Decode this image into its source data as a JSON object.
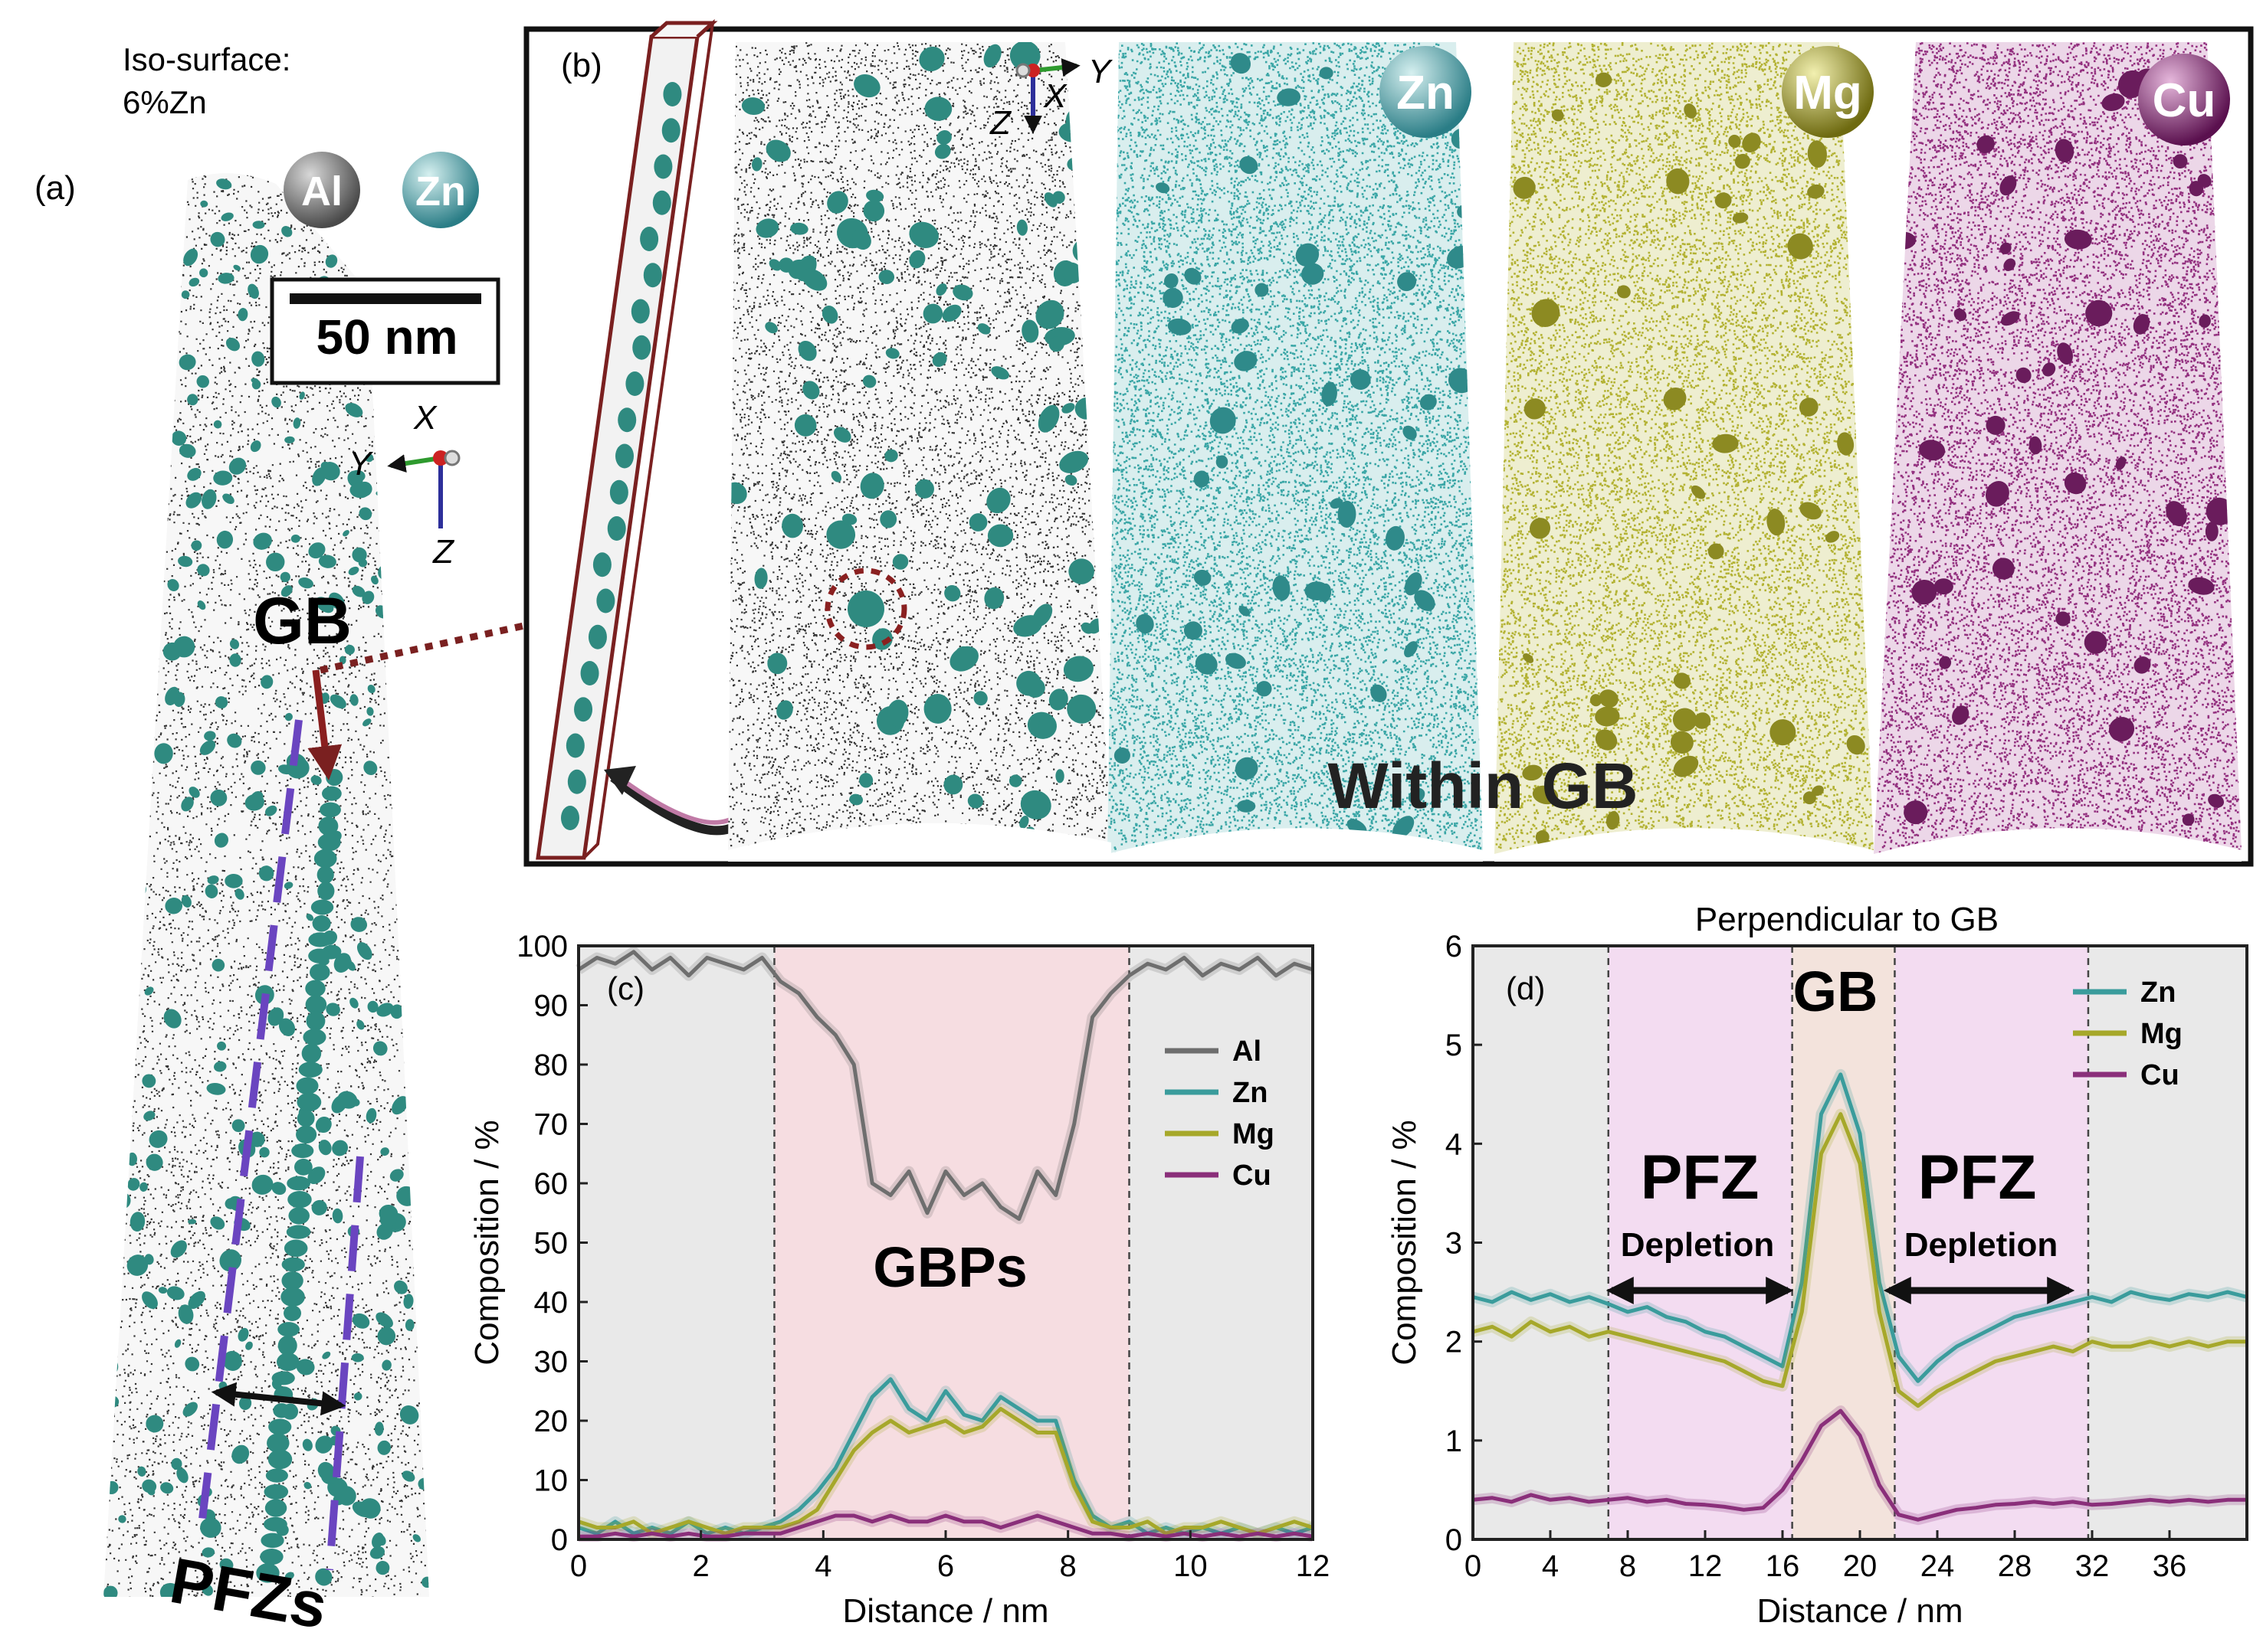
{
  "panel_a": {
    "label": "(a)",
    "iso_line1": "Iso-surface:",
    "iso_line2": "6%Zn",
    "atom_al": "Al",
    "atom_zn": "Zn",
    "scale": "50 nm",
    "axis_x": "X",
    "axis_y": "Y",
    "axis_z": "Z",
    "gb_label": "GB",
    "pfz_label": "PFZs"
  },
  "panel_b": {
    "label": "(b)",
    "axis_x": "X",
    "axis_y": "Y",
    "axis_z": "Z",
    "atom_zn": "Zn",
    "atom_mg": "Mg",
    "atom_cu": "Cu",
    "caption": "Within GB",
    "colors": {
      "zn": "#3aa6a6",
      "mg": "#b3b233",
      "cu": "#93307f",
      "precipitate": "#2f8a80"
    }
  },
  "panel_c": {
    "label": "(c)",
    "band_label": "GBPs"
  },
  "panel_d": {
    "label": "(d)",
    "title": "Perpendicular to GB",
    "gb_label": "GB",
    "pfz_left": "PFZ",
    "pfz_right": "PFZ",
    "depletion_left": "Depletion",
    "depletion_right": "Depletion"
  },
  "chart_data": [
    {
      "type": "line",
      "panel": "c",
      "xlabel": "Distance / nm",
      "ylabel": "Composition / %",
      "xlim": [
        0,
        12
      ],
      "ylim": [
        0,
        100
      ],
      "xticks": [
        0,
        2,
        4,
        6,
        8,
        10,
        12
      ],
      "yticks": [
        0,
        10,
        20,
        30,
        40,
        50,
        60,
        70,
        80,
        90,
        100
      ],
      "legend_position": "right",
      "regions": [
        {
          "x0": 0,
          "x1": 3.2,
          "color": "#e9e9e9"
        },
        {
          "x0": 3.2,
          "x1": 9.0,
          "color": "#f6dde1"
        },
        {
          "x0": 9.0,
          "x1": 12,
          "color": "#e9e9e9"
        }
      ],
      "x": [
        0,
        0.3,
        0.6,
        0.9,
        1.2,
        1.5,
        1.8,
        2.1,
        2.4,
        2.7,
        3.0,
        3.3,
        3.6,
        3.9,
        4.2,
        4.5,
        4.8,
        5.1,
        5.4,
        5.7,
        6.0,
        6.3,
        6.6,
        6.9,
        7.2,
        7.5,
        7.8,
        8.1,
        8.4,
        8.7,
        9.0,
        9.3,
        9.6,
        9.9,
        10.2,
        10.5,
        10.8,
        11.1,
        11.4,
        11.7,
        12.0
      ],
      "series": [
        {
          "name": "Al",
          "color": "#6e6e6e",
          "values": [
            96,
            98,
            97,
            99,
            96,
            98,
            95,
            98,
            97,
            96,
            98,
            94,
            92,
            88,
            85,
            80,
            60,
            58,
            62,
            55,
            62,
            58,
            60,
            56,
            54,
            62,
            58,
            70,
            88,
            92,
            95,
            97,
            96,
            98,
            95,
            97,
            96,
            98,
            95,
            97,
            96
          ]
        },
        {
          "name": "Zn",
          "color": "#3a9c9c",
          "values": [
            2,
            1,
            3,
            1,
            2,
            1,
            3,
            1,
            2,
            1,
            2,
            3,
            5,
            8,
            12,
            18,
            24,
            27,
            22,
            20,
            25,
            21,
            20,
            24,
            22,
            20,
            20,
            10,
            4,
            2,
            3,
            1,
            2,
            1,
            2,
            1,
            2,
            1,
            2,
            1,
            2
          ]
        },
        {
          "name": "Mg",
          "color": "#a6a82a",
          "values": [
            3,
            2,
            2,
            3,
            1,
            2,
            3,
            2,
            1,
            2,
            2,
            2,
            3,
            5,
            10,
            15,
            18,
            20,
            18,
            19,
            20,
            18,
            19,
            22,
            20,
            18,
            18,
            9,
            3,
            2,
            2,
            3,
            1,
            2,
            2,
            3,
            2,
            1,
            2,
            3,
            2
          ]
        },
        {
          "name": "Cu",
          "color": "#8a2f7a",
          "values": [
            0.5,
            0.5,
            1,
            0.5,
            1,
            0.5,
            1,
            0.5,
            0.5,
            1,
            1,
            1,
            2,
            3,
            4,
            4,
            3,
            4,
            3,
            3,
            4,
            3,
            3,
            2,
            3,
            4,
            3,
            2,
            1,
            1,
            0.5,
            1,
            0.5,
            1,
            0.5,
            1,
            0.5,
            1,
            0.5,
            1,
            0.5
          ]
        }
      ]
    },
    {
      "type": "line",
      "panel": "d",
      "title": "Perpendicular to GB",
      "xlabel": "Distance / nm",
      "ylabel": "Composition / %",
      "xlim": [
        0,
        40
      ],
      "ylim": [
        0,
        6
      ],
      "xticks": [
        0,
        4,
        8,
        12,
        16,
        20,
        24,
        28,
        32,
        36
      ],
      "yticks": [
        0,
        1,
        2,
        3,
        4,
        5,
        6
      ],
      "legend_position": "top-right",
      "regions": [
        {
          "x0": 0,
          "x1": 7,
          "color": "#e9e9e9"
        },
        {
          "x0": 7,
          "x1": 16.5,
          "color": "#f3dcf1"
        },
        {
          "x0": 16.5,
          "x1": 21.8,
          "color": "#f3e3dc"
        },
        {
          "x0": 21.8,
          "x1": 31.8,
          "color": "#f3dcf1"
        },
        {
          "x0": 31.8,
          "x1": 40,
          "color": "#e9e9e9"
        }
      ],
      "x": [
        0,
        1,
        2,
        3,
        4,
        5,
        6,
        7,
        8,
        9,
        10,
        11,
        12,
        13,
        14,
        15,
        16,
        17,
        18,
        19,
        20,
        21,
        22,
        23,
        24,
        25,
        26,
        27,
        28,
        29,
        30,
        31,
        32,
        33,
        34,
        35,
        36,
        37,
        38,
        39,
        40
      ],
      "series": [
        {
          "name": "Zn",
          "color": "#3a9c9c",
          "values": [
            2.45,
            2.4,
            2.5,
            2.42,
            2.48,
            2.4,
            2.45,
            2.38,
            2.3,
            2.35,
            2.25,
            2.2,
            2.1,
            2.05,
            1.95,
            1.85,
            1.75,
            2.6,
            4.3,
            4.7,
            4.1,
            2.6,
            1.85,
            1.6,
            1.8,
            1.95,
            2.05,
            2.15,
            2.25,
            2.3,
            2.35,
            2.4,
            2.45,
            2.4,
            2.5,
            2.45,
            2.42,
            2.48,
            2.45,
            2.5,
            2.45
          ]
        },
        {
          "name": "Mg",
          "color": "#a6a82a",
          "values": [
            2.1,
            2.15,
            2.05,
            2.2,
            2.1,
            2.15,
            2.05,
            2.1,
            2.05,
            2.0,
            1.95,
            1.9,
            1.85,
            1.8,
            1.7,
            1.6,
            1.55,
            2.3,
            3.9,
            4.3,
            3.8,
            2.3,
            1.5,
            1.35,
            1.5,
            1.6,
            1.7,
            1.8,
            1.85,
            1.9,
            1.95,
            1.9,
            2.0,
            1.95,
            1.95,
            2.0,
            1.95,
            2.0,
            1.95,
            2.0,
            2.0
          ]
        },
        {
          "name": "Cu",
          "color": "#8a2f7a",
          "values": [
            0.4,
            0.42,
            0.38,
            0.45,
            0.4,
            0.42,
            0.38,
            0.4,
            0.42,
            0.38,
            0.4,
            0.36,
            0.35,
            0.33,
            0.3,
            0.32,
            0.5,
            0.8,
            1.15,
            1.3,
            1.05,
            0.55,
            0.25,
            0.2,
            0.25,
            0.3,
            0.32,
            0.35,
            0.36,
            0.38,
            0.36,
            0.38,
            0.35,
            0.36,
            0.38,
            0.4,
            0.38,
            0.4,
            0.38,
            0.4,
            0.4
          ]
        }
      ]
    }
  ]
}
